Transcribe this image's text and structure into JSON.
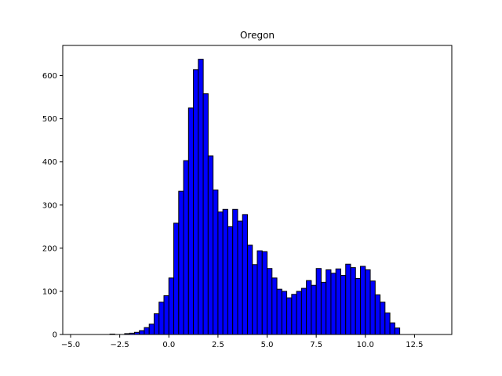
{
  "chart_data": {
    "type": "histogram",
    "title": "Oregon",
    "xlabel": "",
    "ylabel": "",
    "xlim": [
      -5.4,
      14.4
    ],
    "ylim": [
      0,
      670
    ],
    "bar_color": "#0000ff",
    "edge_color": "#000000",
    "grid": false,
    "x_ticks": [
      -5.0,
      -2.5,
      0.0,
      2.5,
      5.0,
      7.5,
      10.0,
      12.5
    ],
    "x_tick_labels": [
      "−5.0",
      "−2.5",
      "0.0",
      "2.5",
      "5.0",
      "7.5",
      "10.0",
      "12.5"
    ],
    "y_ticks": [
      0,
      100,
      200,
      300,
      400,
      500,
      600
    ],
    "y_tick_labels": [
      "0",
      "100",
      "200",
      "300",
      "400",
      "500",
      "600"
    ],
    "bin_start": -4.5,
    "bin_width": 0.25,
    "values": [
      0,
      0,
      0,
      0,
      0,
      0,
      1,
      0,
      0,
      2,
      3,
      5,
      9,
      16,
      24,
      48,
      75,
      90,
      131,
      258,
      332,
      403,
      525,
      614,
      638,
      558,
      414,
      335,
      284,
      290,
      250,
      290,
      263,
      278,
      207,
      162,
      194,
      192,
      153,
      131,
      105,
      100,
      85,
      93,
      100,
      107,
      125,
      114,
      153,
      121,
      150,
      142,
      152,
      137,
      163,
      155,
      130,
      158,
      150,
      124,
      92,
      75,
      50,
      27,
      15
    ]
  }
}
